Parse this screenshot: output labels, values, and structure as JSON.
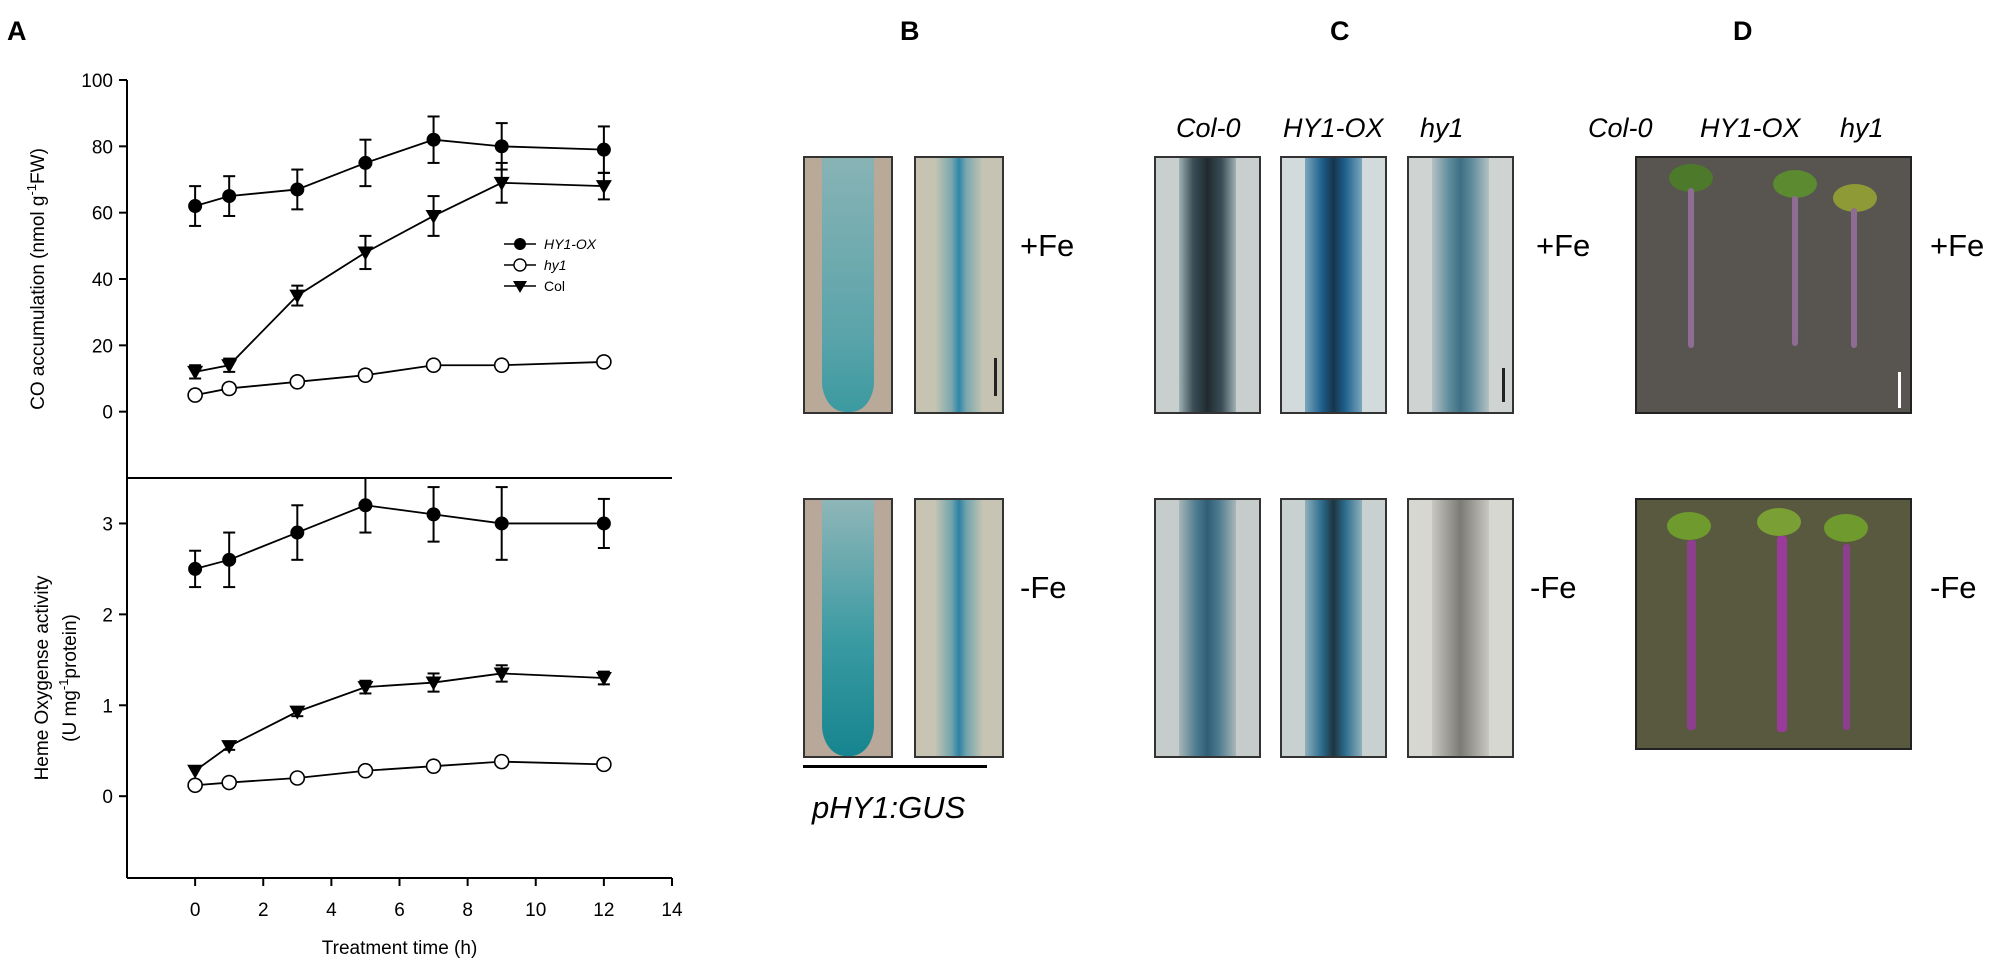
{
  "panels": {
    "A": "A",
    "B": "B",
    "C": "C",
    "D": "D"
  },
  "chart_data": [
    {
      "type": "line",
      "ylabel_parts": [
        "CO accumulation (nmol g",
        "-1",
        "FW)"
      ],
      "xlabel": "",
      "ylim": [
        -20,
        100
      ],
      "yticks": [
        "0",
        "20",
        "40",
        "60",
        "80",
        "100"
      ],
      "legend_position": "right-middle",
      "x": [
        0,
        1,
        3,
        5,
        7,
        9,
        12
      ],
      "series": [
        {
          "name": "HY1-OX",
          "marker": "filled-circle",
          "values": [
            62,
            65,
            67,
            75,
            82,
            80,
            79
          ],
          "errors": [
            6,
            6,
            6,
            7,
            7,
            7,
            7
          ]
        },
        {
          "name": "hy1",
          "marker": "open-circle",
          "values": [
            5,
            7,
            9,
            11,
            14,
            14,
            15
          ],
          "errors": [
            0,
            0,
            0,
            0,
            0,
            0,
            0
          ]
        },
        {
          "name": "Col",
          "marker": "filled-triangle-down",
          "values": [
            12,
            14,
            35,
            48,
            59,
            69,
            68
          ],
          "errors": [
            2,
            2,
            3,
            5,
            6,
            6,
            4
          ]
        }
      ]
    },
    {
      "type": "line",
      "ylabel_line1": "Heme Oxygense activity",
      "ylabel_parts": [
        "(U mg",
        "-1",
        "protein)"
      ],
      "xlabel": "Treatment time (h)",
      "xlim": [
        -2,
        14
      ],
      "xticks": [
        "0",
        "2",
        "4",
        "6",
        "8",
        "10",
        "12",
        "14"
      ],
      "ylim": [
        -0.9,
        3.5
      ],
      "yticks": [
        "0",
        "1",
        "2",
        "3"
      ],
      "x": [
        0,
        1,
        3,
        5,
        7,
        9,
        12
      ],
      "series": [
        {
          "name": "HY1-OX",
          "marker": "filled-circle",
          "values": [
            2.5,
            2.6,
            2.9,
            3.2,
            3.1,
            3.0,
            3.0
          ],
          "errors": [
            0.2,
            0.3,
            0.3,
            0.3,
            0.3,
            0.4,
            0.27
          ]
        },
        {
          "name": "hy1",
          "marker": "open-circle",
          "values": [
            0.12,
            0.15,
            0.2,
            0.28,
            0.33,
            0.38,
            0.35
          ],
          "errors": [
            0,
            0,
            0,
            0,
            0,
            0,
            0
          ]
        },
        {
          "name": "Col",
          "marker": "filled-triangle-down",
          "values": [
            0.28,
            0.55,
            0.93,
            1.2,
            1.25,
            1.35,
            1.3
          ],
          "errors": [
            0,
            0.04,
            0.05,
            0.07,
            0.1,
            0.09,
            0.07
          ]
        }
      ]
    }
  ],
  "panel_b": {
    "caption": "pHY1:GUS"
  },
  "genotypes": [
    "Col-0",
    "HY1-OX",
    "hy1"
  ],
  "conditions": {
    "plus_fe": "+Fe",
    "minus_fe": "-Fe"
  },
  "colors": {
    "gus_blue": "#2f86a8",
    "dark_root": "#26323a",
    "pale_root": "#a9a9a0",
    "photo_bg_c": "#c9cfc9",
    "gray_plate": "#585450",
    "olive_plate": "#59593f",
    "purple_root": "#8c3f8c",
    "leaf_green": "#6f9a2e"
  }
}
